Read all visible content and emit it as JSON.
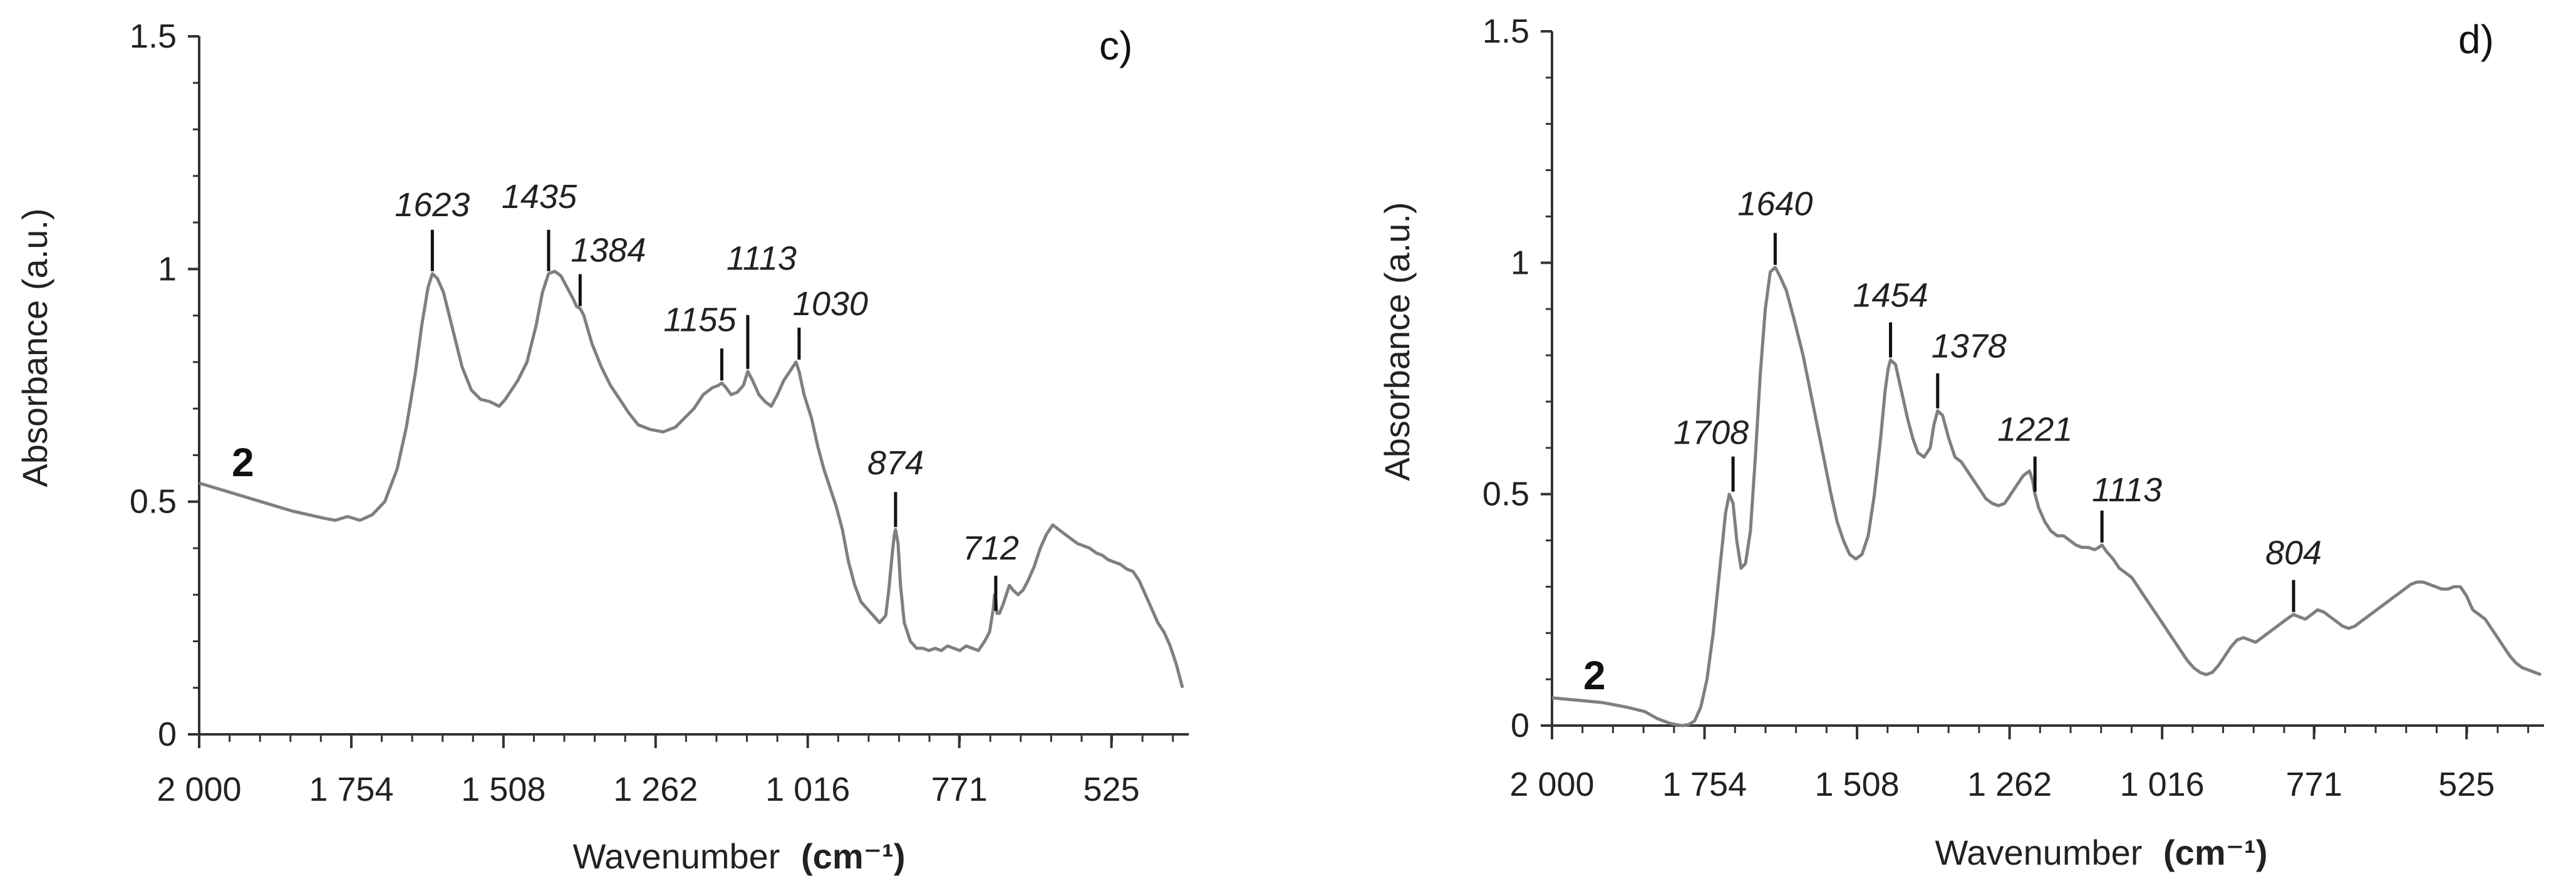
{
  "colors": {
    "axis": "#333333",
    "spectrum": "#7f7f7f",
    "text": "#222222",
    "marker": "#111111"
  },
  "chart_data": [
    {
      "type": "line",
      "panel_label": "c)",
      "sample_label": "2",
      "xlabel": "Wavenumber",
      "xlabel_unit": "(cm⁻¹)",
      "ylabel": "Absorbance (a.u.)",
      "xlim": [
        2000,
        400
      ],
      "ylim": [
        0,
        1.5
      ],
      "x_ticks": [
        2000,
        1754,
        1508,
        1262,
        1016,
        771,
        525
      ],
      "x_tick_labels": [
        "2 000",
        "1 754",
        "1 508",
        "1 262",
        "1 016",
        "771",
        "525"
      ],
      "y_ticks": [
        0,
        0.5,
        1,
        1.5
      ],
      "y_tick_labels": [
        "0",
        "0.5",
        "1",
        "1.5"
      ],
      "series": [
        {
          "name": "2",
          "x": [
            2000,
            1950,
            1900,
            1850,
            1800,
            1780,
            1760,
            1740,
            1720,
            1700,
            1680,
            1665,
            1650,
            1640,
            1630,
            1623,
            1615,
            1605,
            1590,
            1575,
            1560,
            1545,
            1530,
            1515,
            1505,
            1495,
            1485,
            1470,
            1455,
            1445,
            1435,
            1425,
            1415,
            1405,
            1395,
            1390,
            1384,
            1378,
            1365,
            1350,
            1335,
            1320,
            1305,
            1290,
            1270,
            1250,
            1230,
            1215,
            1200,
            1185,
            1170,
            1160,
            1155,
            1148,
            1140,
            1130,
            1120,
            1113,
            1105,
            1095,
            1085,
            1075,
            1065,
            1055,
            1045,
            1035,
            1030,
            1022,
            1010,
            1000,
            990,
            980,
            970,
            960,
            950,
            940,
            930,
            920,
            910,
            900,
            890,
            885,
            880,
            876,
            874,
            870,
            866,
            860,
            850,
            840,
            830,
            820,
            810,
            800,
            790,
            780,
            770,
            760,
            750,
            740,
            730,
            722,
            716,
            714,
            712,
            710,
            706,
            700,
            695,
            690,
            684,
            676,
            668,
            660,
            650,
            640,
            630,
            620,
            610,
            600,
            590,
            580,
            570,
            560,
            550,
            540,
            530,
            520,
            510,
            500,
            490,
            480,
            470,
            460,
            450,
            440,
            430,
            420,
            410
          ],
          "y": [
            0.54,
            0.52,
            0.5,
            0.48,
            0.465,
            0.46,
            0.468,
            0.46,
            0.472,
            0.5,
            0.57,
            0.66,
            0.78,
            0.88,
            0.96,
            0.99,
            0.98,
            0.95,
            0.87,
            0.79,
            0.74,
            0.72,
            0.715,
            0.705,
            0.72,
            0.74,
            0.76,
            0.8,
            0.88,
            0.95,
            0.99,
            0.995,
            0.985,
            0.96,
            0.935,
            0.92,
            0.915,
            0.9,
            0.84,
            0.79,
            0.75,
            0.72,
            0.69,
            0.665,
            0.655,
            0.65,
            0.66,
            0.68,
            0.7,
            0.73,
            0.745,
            0.75,
            0.755,
            0.745,
            0.73,
            0.735,
            0.75,
            0.78,
            0.76,
            0.73,
            0.715,
            0.705,
            0.73,
            0.76,
            0.78,
            0.8,
            0.78,
            0.73,
            0.68,
            0.62,
            0.57,
            0.53,
            0.49,
            0.44,
            0.37,
            0.32,
            0.285,
            0.27,
            0.255,
            0.24,
            0.255,
            0.31,
            0.38,
            0.43,
            0.44,
            0.41,
            0.32,
            0.24,
            0.2,
            0.185,
            0.185,
            0.18,
            0.185,
            0.18,
            0.19,
            0.185,
            0.18,
            0.19,
            0.185,
            0.18,
            0.2,
            0.22,
            0.27,
            0.3,
            0.29,
            0.26,
            0.26,
            0.28,
            0.3,
            0.32,
            0.31,
            0.3,
            0.31,
            0.33,
            0.36,
            0.4,
            0.43,
            0.45,
            0.44,
            0.43,
            0.42,
            0.41,
            0.405,
            0.4,
            0.39,
            0.385,
            0.375,
            0.37,
            0.365,
            0.355,
            0.35,
            0.33,
            0.3,
            0.27,
            0.24,
            0.22,
            0.19,
            0.15,
            0.1
          ]
        }
      ],
      "annotations": [
        {
          "text": "1623",
          "x": 1623,
          "y": 0.99
        },
        {
          "text": "1435",
          "x": 1435,
          "y": 0.99
        },
        {
          "text": "1384",
          "x": 1384,
          "y": 0.915
        },
        {
          "text": "1155",
          "x": 1155,
          "y": 0.755
        },
        {
          "text": "1113",
          "x": 1113,
          "y": 0.78
        },
        {
          "text": "1030",
          "x": 1030,
          "y": 0.8
        },
        {
          "text": "874",
          "x": 874,
          "y": 0.44
        },
        {
          "text": "712",
          "x": 712,
          "y": 0.26
        }
      ]
    },
    {
      "type": "line",
      "panel_label": "d)",
      "sample_label": "2",
      "xlabel": "Wavenumber",
      "xlabel_unit": "(cm⁻¹)",
      "ylabel": "Absorbance (a.u.)",
      "xlim": [
        2000,
        400
      ],
      "ylim": [
        0,
        1.5
      ],
      "x_ticks": [
        2000,
        1754,
        1508,
        1262,
        1016,
        771,
        525
      ],
      "x_tick_labels": [
        "2 000",
        "1 754",
        "1 508",
        "1 262",
        "1 016",
        "771",
        "525"
      ],
      "y_ticks": [
        0,
        0.5,
        1,
        1.5
      ],
      "y_tick_labels": [
        "0",
        "0.5",
        "1",
        "1.5"
      ],
      "series": [
        {
          "name": "2",
          "x": [
            2000,
            1960,
            1920,
            1880,
            1850,
            1830,
            1810,
            1800,
            1790,
            1780,
            1770,
            1760,
            1750,
            1740,
            1730,
            1720,
            1714,
            1708,
            1702,
            1695,
            1688,
            1680,
            1672,
            1664,
            1656,
            1648,
            1640,
            1632,
            1622,
            1610,
            1595,
            1580,
            1565,
            1550,
            1540,
            1530,
            1520,
            1510,
            1500,
            1490,
            1480,
            1470,
            1463,
            1458,
            1454,
            1446,
            1436,
            1426,
            1418,
            1410,
            1400,
            1390,
            1384,
            1378,
            1370,
            1360,
            1350,
            1340,
            1330,
            1320,
            1310,
            1300,
            1290,
            1280,
            1270,
            1260,
            1250,
            1240,
            1230,
            1225,
            1221,
            1215,
            1205,
            1195,
            1185,
            1175,
            1165,
            1155,
            1145,
            1135,
            1125,
            1118,
            1113,
            1105,
            1095,
            1085,
            1075,
            1065,
            1055,
            1045,
            1035,
            1025,
            1015,
            1005,
            995,
            985,
            975,
            965,
            955,
            945,
            935,
            925,
            915,
            905,
            895,
            885,
            875,
            865,
            855,
            845,
            835,
            825,
            815,
            804,
            795,
            785,
            775,
            765,
            755,
            745,
            735,
            725,
            715,
            705,
            695,
            685,
            675,
            665,
            655,
            645,
            635,
            625,
            615,
            605,
            595,
            585,
            575,
            565,
            555,
            545,
            535,
            525,
            515,
            505,
            495,
            485,
            475,
            465,
            455,
            445,
            435,
            425,
            415,
            405
          ],
          "y": [
            0.06,
            0.055,
            0.05,
            0.04,
            0.03,
            0.015,
            0.005,
            0.002,
            0.0,
            0.002,
            0.01,
            0.04,
            0.1,
            0.2,
            0.33,
            0.46,
            0.5,
            0.48,
            0.4,
            0.34,
            0.35,
            0.42,
            0.58,
            0.76,
            0.9,
            0.98,
            0.99,
            0.97,
            0.94,
            0.88,
            0.8,
            0.7,
            0.6,
            0.5,
            0.44,
            0.4,
            0.37,
            0.36,
            0.37,
            0.41,
            0.5,
            0.62,
            0.72,
            0.77,
            0.79,
            0.78,
            0.72,
            0.66,
            0.62,
            0.59,
            0.58,
            0.6,
            0.65,
            0.68,
            0.67,
            0.62,
            0.58,
            0.57,
            0.55,
            0.53,
            0.51,
            0.49,
            0.48,
            0.475,
            0.48,
            0.5,
            0.52,
            0.54,
            0.55,
            0.53,
            0.5,
            0.47,
            0.44,
            0.42,
            0.41,
            0.41,
            0.4,
            0.39,
            0.385,
            0.385,
            0.38,
            0.385,
            0.39,
            0.375,
            0.36,
            0.34,
            0.33,
            0.32,
            0.3,
            0.28,
            0.26,
            0.24,
            0.22,
            0.2,
            0.18,
            0.16,
            0.14,
            0.125,
            0.115,
            0.11,
            0.115,
            0.13,
            0.15,
            0.17,
            0.185,
            0.19,
            0.185,
            0.18,
            0.19,
            0.2,
            0.21,
            0.22,
            0.23,
            0.24,
            0.235,
            0.23,
            0.24,
            0.25,
            0.245,
            0.235,
            0.225,
            0.215,
            0.21,
            0.215,
            0.225,
            0.235,
            0.245,
            0.255,
            0.265,
            0.275,
            0.285,
            0.295,
            0.305,
            0.31,
            0.31,
            0.305,
            0.3,
            0.295,
            0.295,
            0.3,
            0.3,
            0.28,
            0.25,
            0.24,
            0.23,
            0.21,
            0.19,
            0.17,
            0.15,
            0.135,
            0.125,
            0.12,
            0.115,
            0.11
          ]
        }
      ],
      "annotations": [
        {
          "text": "1708",
          "x": 1708,
          "y": 0.5
        },
        {
          "text": "1640",
          "x": 1640,
          "y": 0.99
        },
        {
          "text": "1454",
          "x": 1454,
          "y": 0.79
        },
        {
          "text": "1378",
          "x": 1378,
          "y": 0.68
        },
        {
          "text": "1221",
          "x": 1221,
          "y": 0.5
        },
        {
          "text": "1113",
          "x": 1113,
          "y": 0.39
        },
        {
          "text": "804",
          "x": 804,
          "y": 0.24
        }
      ]
    }
  ]
}
